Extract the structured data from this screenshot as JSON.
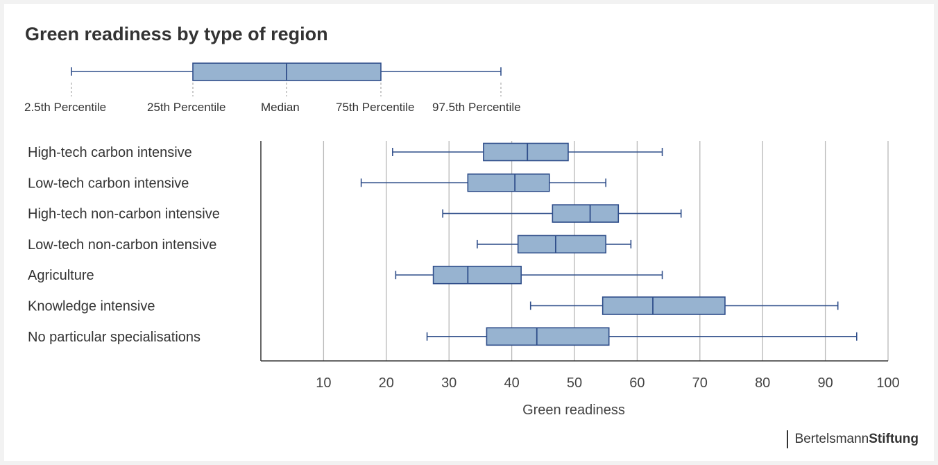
{
  "title": "Green readiness by type of region",
  "legend": {
    "labels": [
      "2.5th Percentile",
      "25th Percentile",
      "Median",
      "75th Percentile",
      "97.5th Percentile"
    ]
  },
  "colors": {
    "box_fill": "#97b3d0",
    "box_stroke": "#2f4e8a",
    "grid": "#b8b8b8",
    "axis": "#333333"
  },
  "brand": {
    "part1": "Bertelsmann",
    "part2": "Stiftung"
  },
  "chart_data": {
    "type": "boxplot",
    "orientation": "horizontal",
    "xlabel": "Green readiness",
    "xlim": [
      0,
      100
    ],
    "xticks": [
      10,
      20,
      30,
      40,
      50,
      60,
      70,
      80,
      90,
      100
    ],
    "grid": true,
    "categories": [
      "High-tech carbon intensive",
      "Low-tech carbon intensive",
      "High-tech non-carbon intensive",
      "Low-tech non-carbon intensive",
      "Agriculture",
      "Knowledge intensive",
      "No particular specialisations"
    ],
    "series": [
      {
        "category": "High-tech carbon intensive",
        "p2_5": 21,
        "p25": 35.5,
        "median": 42.5,
        "p75": 49,
        "p97_5": 64
      },
      {
        "category": "Low-tech carbon intensive",
        "p2_5": 16,
        "p25": 33,
        "median": 40.5,
        "p75": 46,
        "p97_5": 55
      },
      {
        "category": "High-tech non-carbon intensive",
        "p2_5": 29,
        "p25": 46.5,
        "median": 52.5,
        "p75": 57,
        "p97_5": 67
      },
      {
        "category": "Low-tech non-carbon intensive",
        "p2_5": 34.5,
        "p25": 41,
        "median": 47,
        "p75": 55,
        "p97_5": 59
      },
      {
        "category": "Agriculture",
        "p2_5": 21.5,
        "p25": 27.5,
        "median": 33,
        "p75": 41.5,
        "p97_5": 64
      },
      {
        "category": "Knowledge intensive",
        "p2_5": 43,
        "p25": 54.5,
        "median": 62.5,
        "p75": 74,
        "p97_5": 92
      },
      {
        "category": "No particular specialisations",
        "p2_5": 26.5,
        "p25": 36,
        "median": 44,
        "p75": 55.5,
        "p97_5": 95
      }
    ]
  }
}
